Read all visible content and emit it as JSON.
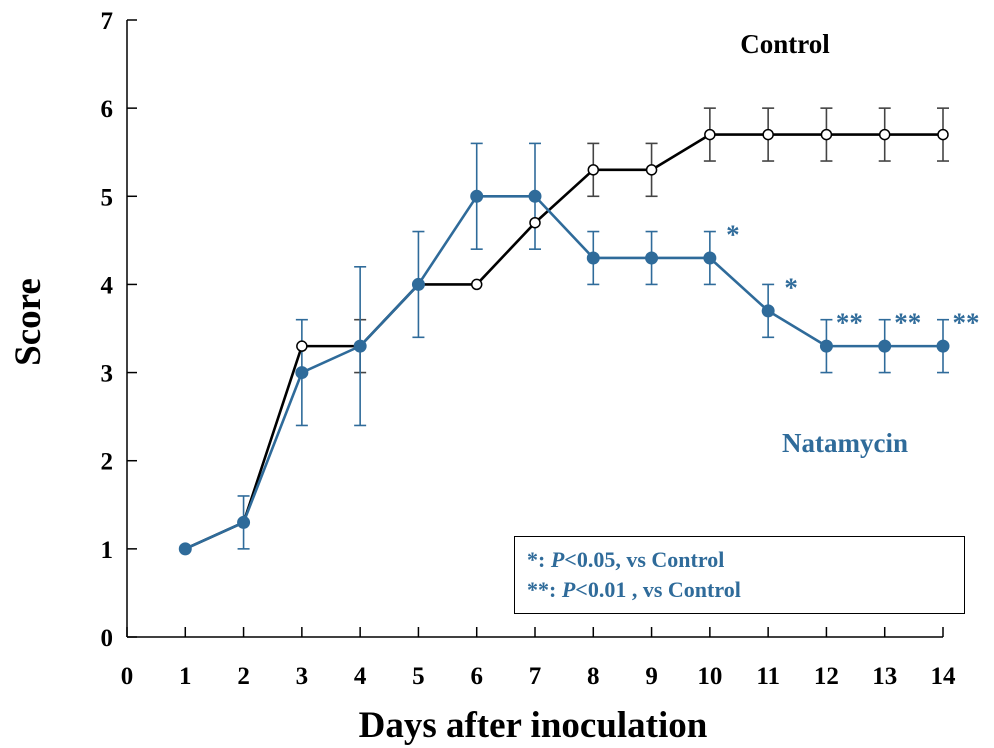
{
  "chart_data": {
    "type": "line",
    "xlabel": "Days after inoculation",
    "ylabel": "Score",
    "xlim": [
      0,
      14
    ],
    "ylim": [
      0,
      7
    ],
    "x_ticks": [
      0,
      1,
      2,
      3,
      4,
      5,
      6,
      7,
      8,
      9,
      10,
      11,
      12,
      13,
      14
    ],
    "y_ticks": [
      0,
      1,
      2,
      3,
      4,
      5,
      6,
      7
    ],
    "grid": false,
    "series": [
      {
        "name": "Control",
        "color": "#000000",
        "marker": "open-circle",
        "x": [
          1,
          2,
          3,
          4,
          5,
          6,
          7,
          8,
          9,
          10,
          11,
          12,
          13,
          14
        ],
        "values": [
          1.0,
          1.3,
          3.3,
          3.3,
          4.0,
          4.0,
          4.7,
          5.3,
          5.3,
          5.7,
          5.7,
          5.7,
          5.7,
          5.7
        ],
        "error": [
          0,
          0,
          0,
          0.3,
          0,
          0,
          0,
          0.3,
          0.3,
          0.3,
          0.3,
          0.3,
          0.3,
          0.3
        ]
      },
      {
        "name": "Natamycin",
        "color": "#2f6b9a",
        "marker": "filled-circle",
        "x": [
          1,
          2,
          3,
          4,
          5,
          6,
          7,
          8,
          9,
          10,
          11,
          12,
          13,
          14
        ],
        "values": [
          1.0,
          1.3,
          3.0,
          3.3,
          4.0,
          5.0,
          5.0,
          4.3,
          4.3,
          4.3,
          3.7,
          3.3,
          3.3,
          3.3
        ],
        "error": [
          0,
          0.3,
          0.6,
          0.9,
          0.6,
          0.6,
          0.6,
          0.3,
          0.3,
          0.3,
          0.3,
          0.3,
          0.3,
          0.3
        ]
      }
    ],
    "significance": [
      {
        "x": 10,
        "mark": "*"
      },
      {
        "x": 11,
        "mark": "*"
      },
      {
        "x": 12,
        "mark": "**"
      },
      {
        "x": 13,
        "mark": "**"
      },
      {
        "x": 14,
        "mark": "**"
      }
    ],
    "legend": {
      "placement": "bottom-right",
      "line1_prefix": "*: ",
      "line1_p": "P",
      "line1_suffix": "<0.05, vs Control",
      "line2_prefix": "**: ",
      "line2_p": "P",
      "line2_suffix": "<0.01 , vs Control"
    }
  }
}
